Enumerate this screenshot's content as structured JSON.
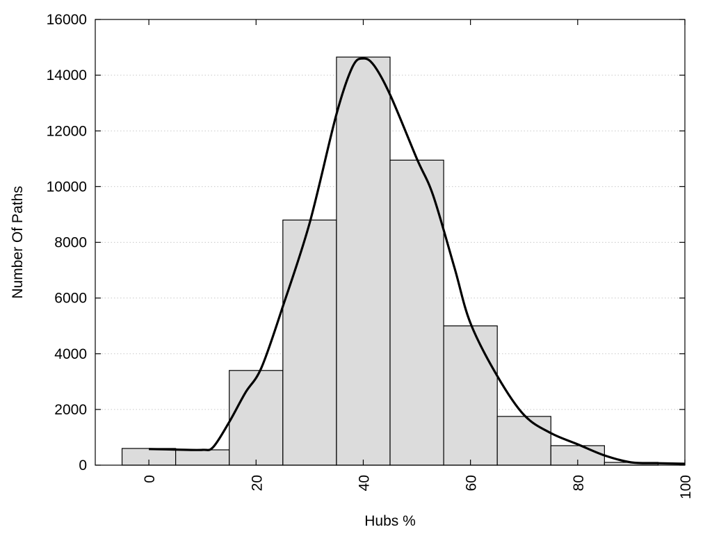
{
  "chart_data": {
    "type": "bar",
    "title": "",
    "xlabel": "Hubs %",
    "ylabel": "Number Of Paths",
    "xlim": [
      -10,
      100
    ],
    "ylim": [
      0,
      16000
    ],
    "xticks": [
      0,
      20,
      40,
      60,
      80,
      100
    ],
    "yticks": [
      0,
      2000,
      4000,
      6000,
      8000,
      10000,
      12000,
      14000,
      16000
    ],
    "grid": "horizontal dotted",
    "bin_width": 10,
    "bins": [
      {
        "center": 0,
        "value": 600
      },
      {
        "center": 10,
        "value": 550
      },
      {
        "center": 20,
        "value": 3400
      },
      {
        "center": 30,
        "value": 8800
      },
      {
        "center": 40,
        "value": 14650
      },
      {
        "center": 50,
        "value": 10950
      },
      {
        "center": 60,
        "value": 5000
      },
      {
        "center": 70,
        "value": 1750
      },
      {
        "center": 80,
        "value": 700
      },
      {
        "center": 90,
        "value": 100
      }
    ],
    "curve": {
      "type": "smoothed line",
      "x": [
        0,
        5,
        10,
        12,
        15,
        18,
        21,
        25,
        30,
        35,
        38,
        40,
        42,
        45,
        50,
        53,
        57,
        60,
        65,
        70,
        75,
        80,
        85,
        90,
        95,
        100
      ],
      "y": [
        580,
        560,
        550,
        650,
        1550,
        2600,
        3500,
        5700,
        8700,
        12600,
        14300,
        14600,
        14350,
        13300,
        11000,
        9700,
        7100,
        5100,
        3200,
        1800,
        1150,
        750,
        350,
        100,
        70,
        50
      ]
    }
  }
}
